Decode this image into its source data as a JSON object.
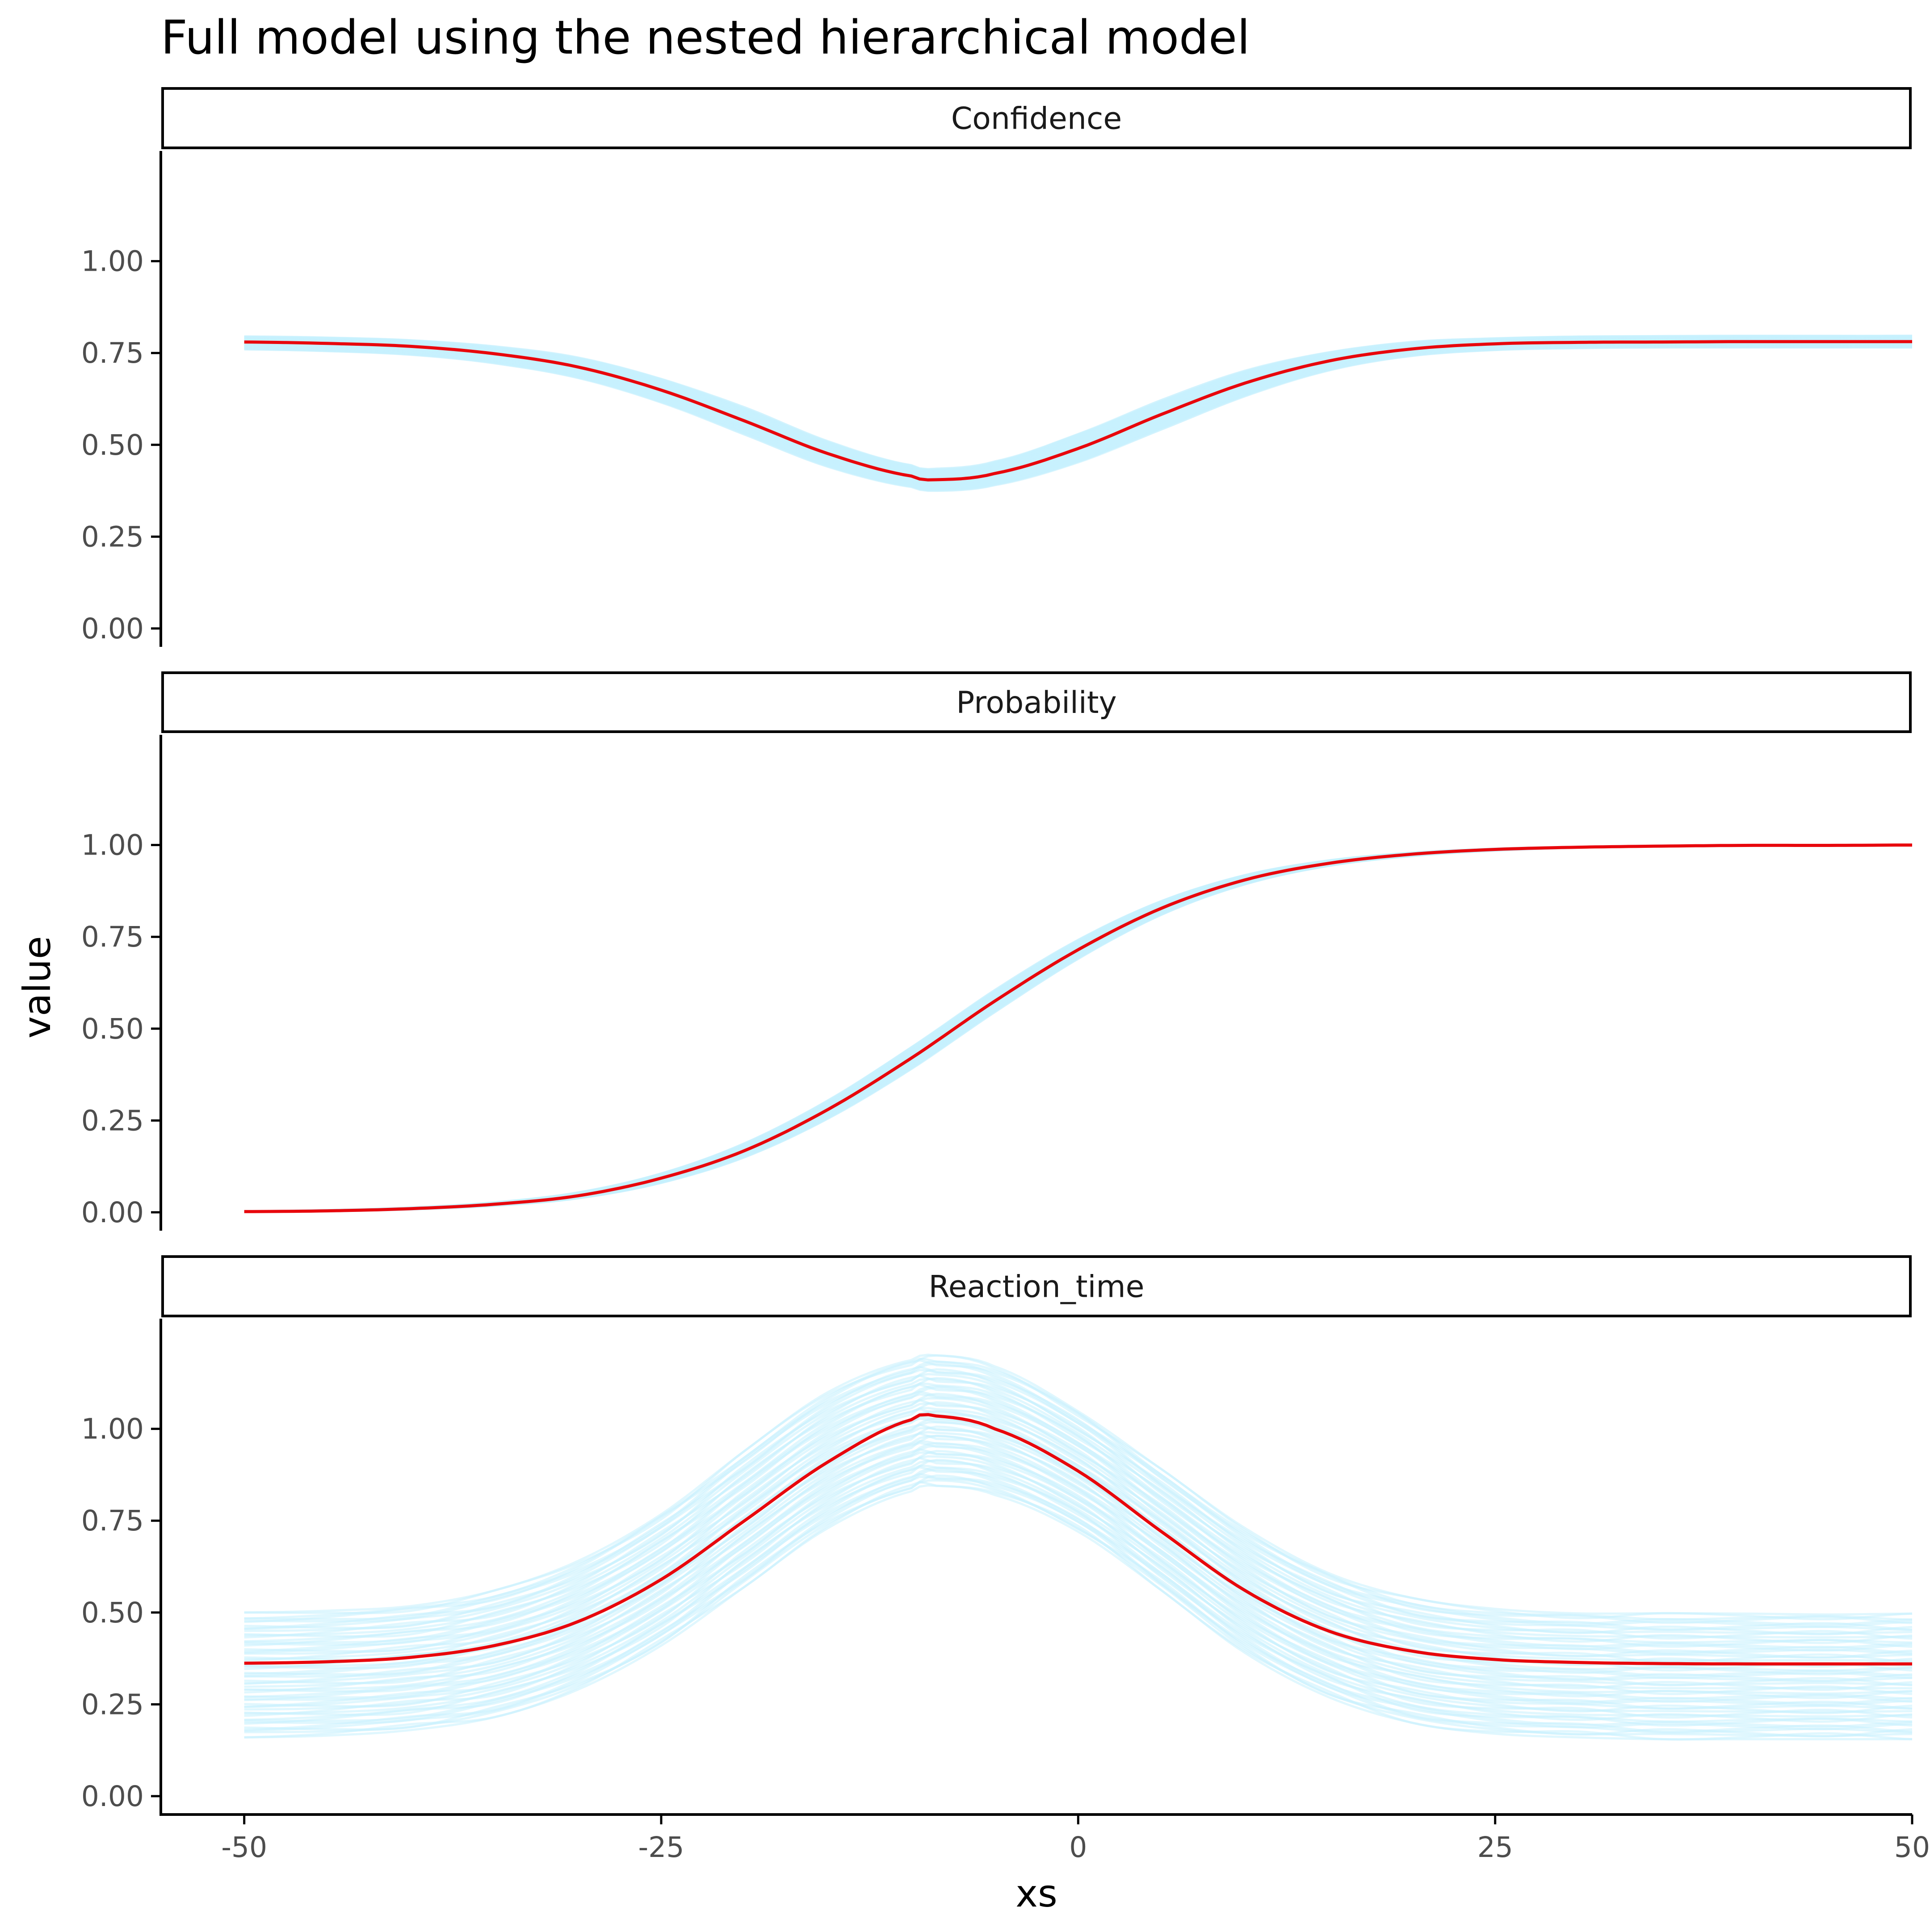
{
  "title": "Full model using the nested hierarchical model",
  "xlabel": "xs",
  "ylabel": "value",
  "colors": {
    "main_line": "#e8070c",
    "draws": "#c6f0fd",
    "axis": "#000000",
    "tick_label": "#4d4d4d"
  },
  "chart_data": {
    "type": "line",
    "title": "Full model using the nested hierarchical model",
    "xlabel": "xs",
    "ylabel": "value",
    "xlim": [
      -55,
      50
    ],
    "ylim": [
      -0.05,
      1.3
    ],
    "x_ticks": [
      -50,
      -25,
      0,
      25,
      50
    ],
    "x_tick_labels": [
      "-50",
      "-25",
      "0",
      "25",
      "50"
    ],
    "y_ticks": [
      0,
      0.25,
      0.5,
      0.75,
      1.0
    ],
    "y_tick_labels": [
      "0.00",
      "0.25",
      "0.50",
      "0.75",
      "1.00"
    ],
    "grid": false,
    "legend": "none",
    "panels": [
      {
        "name": "Confidence",
        "series": [
          {
            "role": "estimate",
            "color": "#e8070c",
            "x": [
              -50,
              -45,
              -40,
              -35,
              -30,
              -25,
              -20,
              -15,
              -10,
              -8.5,
              -5,
              0,
              5,
              10,
              15,
              20,
              25,
              30,
              35,
              40,
              45,
              50
            ],
            "y": [
              0.78,
              0.776,
              0.768,
              0.748,
              0.712,
              0.649,
              0.565,
              0.476,
              0.415,
              0.405,
              0.422,
              0.49,
              0.583,
              0.668,
              0.728,
              0.761,
              0.775,
              0.779,
              0.78,
              0.781,
              0.781,
              0.781
            ]
          },
          {
            "role": "posterior-draws",
            "color": "#c6f0fd",
            "x": [
              -50,
              -45,
              -40,
              -35,
              -30,
              -25,
              -20,
              -15,
              -10,
              -8.5,
              -5,
              0,
              5,
              10,
              15,
              20,
              25,
              30,
              35,
              40,
              45,
              50
            ],
            "band_lower": [
              0.76,
              0.755,
              0.745,
              0.722,
              0.682,
              0.615,
              0.528,
              0.44,
              0.385,
              0.375,
              0.39,
              0.452,
              0.542,
              0.632,
              0.702,
              0.742,
              0.758,
              0.763,
              0.765,
              0.765,
              0.765,
              0.765
            ],
            "band_upper": [
              0.795,
              0.792,
              0.785,
              0.768,
              0.738,
              0.68,
              0.602,
              0.51,
              0.445,
              0.435,
              0.455,
              0.53,
              0.622,
              0.702,
              0.752,
              0.78,
              0.79,
              0.795,
              0.796,
              0.797,
              0.797,
              0.797
            ]
          }
        ]
      },
      {
        "name": "Probability",
        "series": [
          {
            "role": "estimate",
            "color": "#e8070c",
            "x": [
              -50,
              -45,
              -40,
              -35,
              -30,
              -25,
              -20,
              -15,
              -10,
              -5,
              0,
              5,
              10,
              15,
              20,
              25,
              30,
              35,
              40,
              45,
              50
            ],
            "y": [
              0.002,
              0.004,
              0.01,
              0.022,
              0.045,
              0.093,
              0.168,
              0.28,
              0.42,
              0.575,
              0.715,
              0.828,
              0.905,
              0.95,
              0.975,
              0.988,
              0.994,
              0.997,
              0.999,
              0.999,
              1.0
            ]
          },
          {
            "role": "posterior-draws",
            "color": "#c6f0fd",
            "x": [
              -50,
              -45,
              -40,
              -35,
              -30,
              -25,
              -20,
              -15,
              -10,
              -5,
              0,
              5,
              10,
              15,
              20,
              25,
              30,
              35,
              40,
              45,
              50
            ],
            "band_lower": [
              0.001,
              0.003,
              0.008,
              0.018,
              0.038,
              0.08,
              0.15,
              0.255,
              0.39,
              0.545,
              0.69,
              0.81,
              0.893,
              0.943,
              0.97,
              0.985,
              0.993,
              0.997,
              0.998,
              0.999,
              1.0
            ],
            "band_upper": [
              0.003,
              0.006,
              0.013,
              0.027,
              0.054,
              0.106,
              0.188,
              0.305,
              0.45,
              0.605,
              0.742,
              0.848,
              0.918,
              0.958,
              0.979,
              0.99,
              0.995,
              0.998,
              0.999,
              1.0,
              1.0
            ]
          }
        ]
      },
      {
        "name": "Reaction_time",
        "series": [
          {
            "role": "estimate",
            "color": "#e8070c",
            "x": [
              -50,
              -45,
              -40,
              -35,
              -30,
              -25,
              -20,
              -15,
              -10,
              -8.5,
              -5,
              0,
              5,
              10,
              15,
              20,
              25,
              30,
              35,
              40,
              45,
              50
            ],
            "y": [
              0.362,
              0.366,
              0.378,
              0.41,
              0.475,
              0.59,
              0.75,
              0.91,
              1.025,
              1.035,
              1.0,
              0.885,
              0.72,
              0.56,
              0.45,
              0.395,
              0.372,
              0.364,
              0.361,
              0.36,
              0.36,
              0.36
            ]
          },
          {
            "role": "posterior-draws",
            "color": "#c6f0fd",
            "x": [
              -50,
              -45,
              -40,
              -35,
              -30,
              -25,
              -20,
              -15,
              -10,
              -8.5,
              -5,
              0,
              5,
              10,
              15,
              20,
              25,
              30,
              35,
              40,
              45,
              50
            ],
            "band_lower": [
              0.16,
              0.165,
              0.18,
              0.215,
              0.29,
              0.41,
              0.57,
              0.73,
              0.83,
              0.845,
              0.82,
              0.72,
              0.56,
              0.39,
              0.27,
              0.2,
              0.17,
              0.16,
              0.155,
              0.155,
              0.155,
              0.155
            ],
            "band_upper": [
              0.5,
              0.505,
              0.52,
              0.56,
              0.64,
              0.77,
              0.94,
              1.1,
              1.19,
              1.2,
              1.17,
              1.05,
              0.89,
              0.73,
              0.61,
              0.54,
              0.51,
              0.5,
              0.498,
              0.497,
              0.497,
              0.497
            ]
          }
        ]
      }
    ]
  }
}
